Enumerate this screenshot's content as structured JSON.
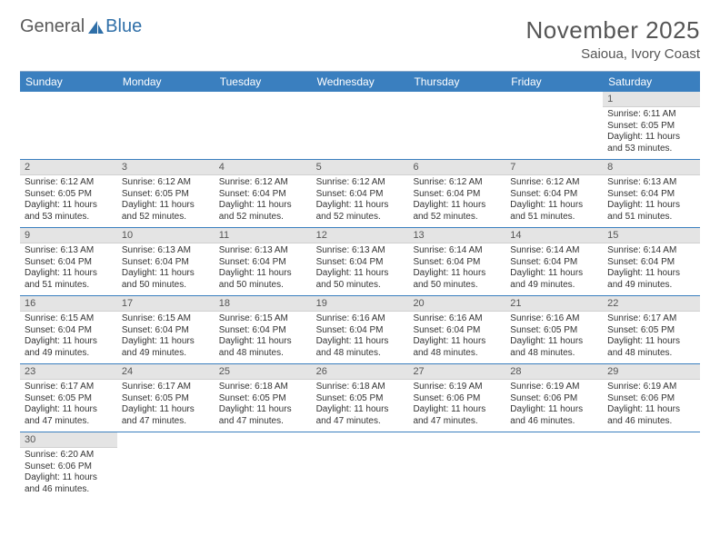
{
  "logo": {
    "text_general": "General",
    "text_blue": "Blue"
  },
  "title": {
    "month": "November 2025",
    "location": "Saioua, Ivory Coast"
  },
  "colors": {
    "header_bg": "#3a7fbf",
    "header_text": "#ffffff",
    "daynum_bg": "#e4e4e4",
    "row_border": "#3a7fbf",
    "text": "#333333",
    "title_text": "#555555"
  },
  "day_headers": [
    "Sunday",
    "Monday",
    "Tuesday",
    "Wednesday",
    "Thursday",
    "Friday",
    "Saturday"
  ],
  "weeks": [
    [
      {
        "empty": true
      },
      {
        "empty": true
      },
      {
        "empty": true
      },
      {
        "empty": true
      },
      {
        "empty": true
      },
      {
        "empty": true
      },
      {
        "day": "1",
        "sunrise": "Sunrise: 6:11 AM",
        "sunset": "Sunset: 6:05 PM",
        "daylight1": "Daylight: 11 hours",
        "daylight2": "and 53 minutes."
      }
    ],
    [
      {
        "day": "2",
        "sunrise": "Sunrise: 6:12 AM",
        "sunset": "Sunset: 6:05 PM",
        "daylight1": "Daylight: 11 hours",
        "daylight2": "and 53 minutes."
      },
      {
        "day": "3",
        "sunrise": "Sunrise: 6:12 AM",
        "sunset": "Sunset: 6:05 PM",
        "daylight1": "Daylight: 11 hours",
        "daylight2": "and 52 minutes."
      },
      {
        "day": "4",
        "sunrise": "Sunrise: 6:12 AM",
        "sunset": "Sunset: 6:04 PM",
        "daylight1": "Daylight: 11 hours",
        "daylight2": "and 52 minutes."
      },
      {
        "day": "5",
        "sunrise": "Sunrise: 6:12 AM",
        "sunset": "Sunset: 6:04 PM",
        "daylight1": "Daylight: 11 hours",
        "daylight2": "and 52 minutes."
      },
      {
        "day": "6",
        "sunrise": "Sunrise: 6:12 AM",
        "sunset": "Sunset: 6:04 PM",
        "daylight1": "Daylight: 11 hours",
        "daylight2": "and 52 minutes."
      },
      {
        "day": "7",
        "sunrise": "Sunrise: 6:12 AM",
        "sunset": "Sunset: 6:04 PM",
        "daylight1": "Daylight: 11 hours",
        "daylight2": "and 51 minutes."
      },
      {
        "day": "8",
        "sunrise": "Sunrise: 6:13 AM",
        "sunset": "Sunset: 6:04 PM",
        "daylight1": "Daylight: 11 hours",
        "daylight2": "and 51 minutes."
      }
    ],
    [
      {
        "day": "9",
        "sunrise": "Sunrise: 6:13 AM",
        "sunset": "Sunset: 6:04 PM",
        "daylight1": "Daylight: 11 hours",
        "daylight2": "and 51 minutes."
      },
      {
        "day": "10",
        "sunrise": "Sunrise: 6:13 AM",
        "sunset": "Sunset: 6:04 PM",
        "daylight1": "Daylight: 11 hours",
        "daylight2": "and 50 minutes."
      },
      {
        "day": "11",
        "sunrise": "Sunrise: 6:13 AM",
        "sunset": "Sunset: 6:04 PM",
        "daylight1": "Daylight: 11 hours",
        "daylight2": "and 50 minutes."
      },
      {
        "day": "12",
        "sunrise": "Sunrise: 6:13 AM",
        "sunset": "Sunset: 6:04 PM",
        "daylight1": "Daylight: 11 hours",
        "daylight2": "and 50 minutes."
      },
      {
        "day": "13",
        "sunrise": "Sunrise: 6:14 AM",
        "sunset": "Sunset: 6:04 PM",
        "daylight1": "Daylight: 11 hours",
        "daylight2": "and 50 minutes."
      },
      {
        "day": "14",
        "sunrise": "Sunrise: 6:14 AM",
        "sunset": "Sunset: 6:04 PM",
        "daylight1": "Daylight: 11 hours",
        "daylight2": "and 49 minutes."
      },
      {
        "day": "15",
        "sunrise": "Sunrise: 6:14 AM",
        "sunset": "Sunset: 6:04 PM",
        "daylight1": "Daylight: 11 hours",
        "daylight2": "and 49 minutes."
      }
    ],
    [
      {
        "day": "16",
        "sunrise": "Sunrise: 6:15 AM",
        "sunset": "Sunset: 6:04 PM",
        "daylight1": "Daylight: 11 hours",
        "daylight2": "and 49 minutes."
      },
      {
        "day": "17",
        "sunrise": "Sunrise: 6:15 AM",
        "sunset": "Sunset: 6:04 PM",
        "daylight1": "Daylight: 11 hours",
        "daylight2": "and 49 minutes."
      },
      {
        "day": "18",
        "sunrise": "Sunrise: 6:15 AM",
        "sunset": "Sunset: 6:04 PM",
        "daylight1": "Daylight: 11 hours",
        "daylight2": "and 48 minutes."
      },
      {
        "day": "19",
        "sunrise": "Sunrise: 6:16 AM",
        "sunset": "Sunset: 6:04 PM",
        "daylight1": "Daylight: 11 hours",
        "daylight2": "and 48 minutes."
      },
      {
        "day": "20",
        "sunrise": "Sunrise: 6:16 AM",
        "sunset": "Sunset: 6:04 PM",
        "daylight1": "Daylight: 11 hours",
        "daylight2": "and 48 minutes."
      },
      {
        "day": "21",
        "sunrise": "Sunrise: 6:16 AM",
        "sunset": "Sunset: 6:05 PM",
        "daylight1": "Daylight: 11 hours",
        "daylight2": "and 48 minutes."
      },
      {
        "day": "22",
        "sunrise": "Sunrise: 6:17 AM",
        "sunset": "Sunset: 6:05 PM",
        "daylight1": "Daylight: 11 hours",
        "daylight2": "and 48 minutes."
      }
    ],
    [
      {
        "day": "23",
        "sunrise": "Sunrise: 6:17 AM",
        "sunset": "Sunset: 6:05 PM",
        "daylight1": "Daylight: 11 hours",
        "daylight2": "and 47 minutes."
      },
      {
        "day": "24",
        "sunrise": "Sunrise: 6:17 AM",
        "sunset": "Sunset: 6:05 PM",
        "daylight1": "Daylight: 11 hours",
        "daylight2": "and 47 minutes."
      },
      {
        "day": "25",
        "sunrise": "Sunrise: 6:18 AM",
        "sunset": "Sunset: 6:05 PM",
        "daylight1": "Daylight: 11 hours",
        "daylight2": "and 47 minutes."
      },
      {
        "day": "26",
        "sunrise": "Sunrise: 6:18 AM",
        "sunset": "Sunset: 6:05 PM",
        "daylight1": "Daylight: 11 hours",
        "daylight2": "and 47 minutes."
      },
      {
        "day": "27",
        "sunrise": "Sunrise: 6:19 AM",
        "sunset": "Sunset: 6:06 PM",
        "daylight1": "Daylight: 11 hours",
        "daylight2": "and 47 minutes."
      },
      {
        "day": "28",
        "sunrise": "Sunrise: 6:19 AM",
        "sunset": "Sunset: 6:06 PM",
        "daylight1": "Daylight: 11 hours",
        "daylight2": "and 46 minutes."
      },
      {
        "day": "29",
        "sunrise": "Sunrise: 6:19 AM",
        "sunset": "Sunset: 6:06 PM",
        "daylight1": "Daylight: 11 hours",
        "daylight2": "and 46 minutes."
      }
    ],
    [
      {
        "day": "30",
        "sunrise": "Sunrise: 6:20 AM",
        "sunset": "Sunset: 6:06 PM",
        "daylight1": "Daylight: 11 hours",
        "daylight2": "and 46 minutes."
      },
      {
        "empty": true
      },
      {
        "empty": true
      },
      {
        "empty": true
      },
      {
        "empty": true
      },
      {
        "empty": true
      },
      {
        "empty": true
      }
    ]
  ]
}
